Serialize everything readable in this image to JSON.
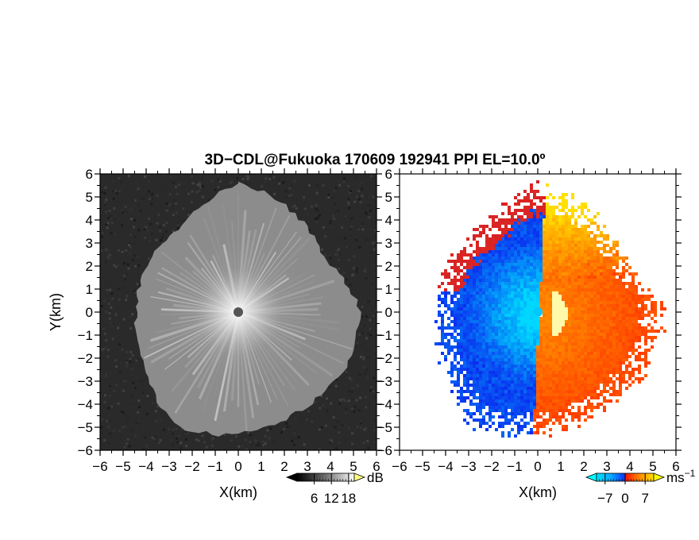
{
  "title": "3D−CDL@Fukuoka 170609 192941 PPI EL=10.0º",
  "colors": {
    "background": "#ffffff",
    "snr_panel_bg": "#2a2a2a",
    "velocity_negative": "#0a3cff",
    "velocity_negative_light": "#0ad2ff",
    "velocity_positive": "#ff2a00",
    "velocity_positive_light": "#ffd000",
    "center_marker_snr": "#555555",
    "center_marker_vel": "#00c8ff"
  },
  "chart_data": [
    {
      "type": "heatmap",
      "panel": "snr",
      "quantity": "signal-to-noise ratio",
      "xlabel": "X(km)",
      "ylabel": "Y(km)",
      "xlim": [
        -6,
        6
      ],
      "ylim": [
        -6,
        6
      ],
      "x_ticks": [
        "−6",
        "−5",
        "−4",
        "−3",
        "−2",
        "−1",
        "0",
        "1",
        "2",
        "3",
        "4",
        "5",
        "6"
      ],
      "y_ticks": [
        "−6",
        "−5",
        "−4",
        "−3",
        "−2",
        "−1",
        "0",
        "1",
        "2",
        "3",
        "4",
        "5",
        "6"
      ],
      "radar_location": [
        0,
        0
      ],
      "echo_extent_km": [
        {
          "azimuth_deg": 0,
          "range": 5.6
        },
        {
          "azimuth_deg": 30,
          "range": 4.9
        },
        {
          "azimuth_deg": 60,
          "range": 4.4
        },
        {
          "azimuth_deg": 90,
          "range": 5.3
        },
        {
          "azimuth_deg": 120,
          "range": 5.2
        },
        {
          "azimuth_deg": 150,
          "range": 5.0
        },
        {
          "azimuth_deg": 180,
          "range": 5.3
        },
        {
          "azimuth_deg": 210,
          "range": 5.6
        },
        {
          "azimuth_deg": 240,
          "range": 4.7
        },
        {
          "azimuth_deg": 270,
          "range": 4.4
        },
        {
          "azimuth_deg": 300,
          "range": 4.5
        },
        {
          "azimuth_deg": 330,
          "range": 4.5
        }
      ],
      "colorbar": {
        "unit": "dB",
        "ticks": [
          "6",
          "12",
          "18"
        ],
        "range": [
          0,
          20
        ]
      }
    },
    {
      "type": "heatmap",
      "panel": "doppler velocity",
      "quantity": "radial velocity",
      "xlabel": "X(km)",
      "ylabel": "",
      "xlim": [
        -6,
        6
      ],
      "ylim": [
        -6,
        6
      ],
      "x_ticks": [
        "−6",
        "−5",
        "−4",
        "−3",
        "−2",
        "−1",
        "0",
        "1",
        "2",
        "3",
        "4",
        "5",
        "6"
      ],
      "y_ticks": [
        "−6",
        "−5",
        "−4",
        "−3",
        "−2",
        "−1",
        "0",
        "1",
        "2",
        "3",
        "4",
        "5",
        "6"
      ],
      "radar_location": [
        0,
        0
      ],
      "approaching_region": "west half, bluish (negative)",
      "receding_region": "east half, orange/red (positive)",
      "colorbar": {
        "unit": "ms",
        "unit_exp": "−1",
        "ticks": [
          "−7",
          "0",
          "7"
        ],
        "range": [
          -10,
          10
        ]
      }
    }
  ]
}
